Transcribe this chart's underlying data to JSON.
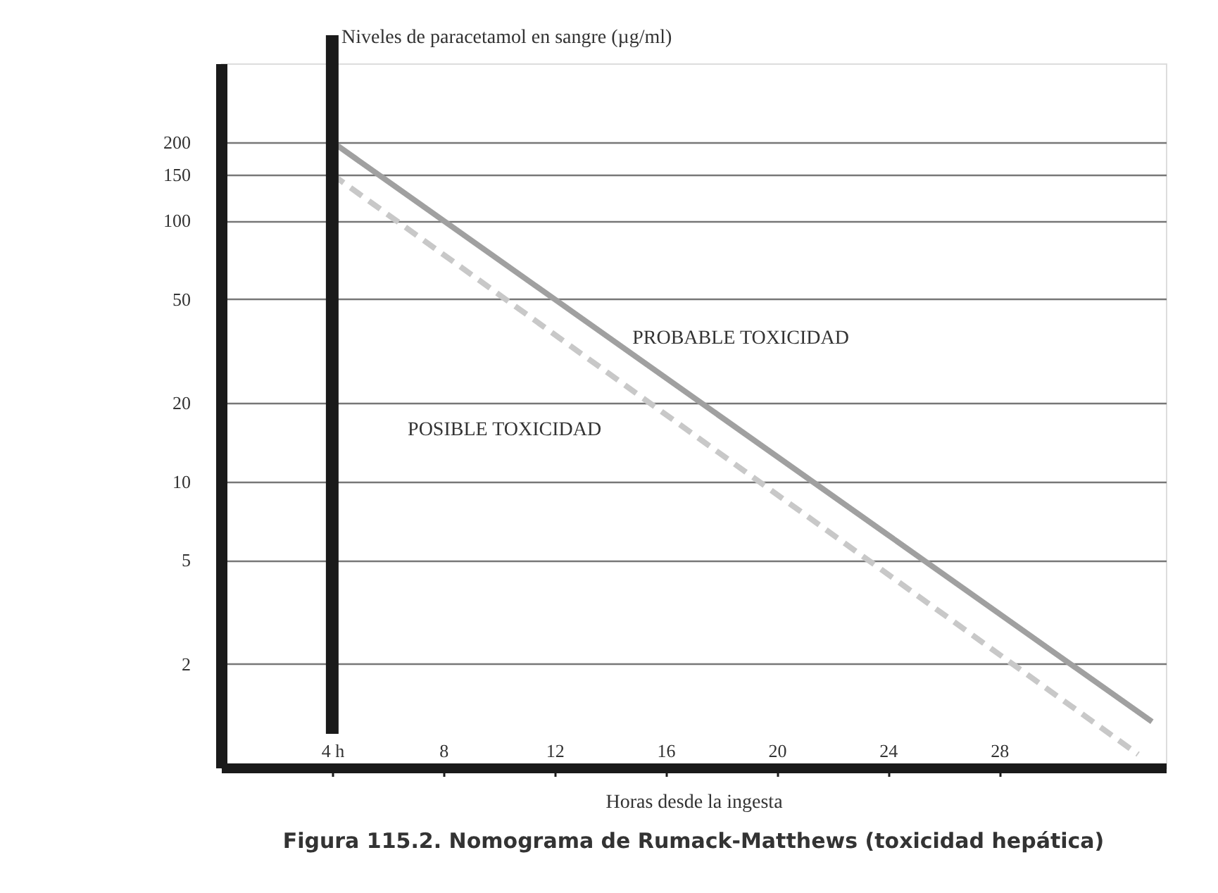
{
  "chart_data": {
    "type": "line",
    "title": "Figura 115.2. Nomograma de Rumack-Matthews (toxicidad hepática)",
    "xlabel": "Horas desde la ingesta",
    "ylabel": "Niveles de paracetamol en sangre (µg/ml)",
    "log": "y",
    "grid": "y",
    "marker": "none",
    "xlim": [
      0,
      34
    ],
    "xticks": [
      {
        "value": 4,
        "label": "4 h"
      },
      8,
      12,
      16,
      20,
      24,
      28
    ],
    "ylim": [
      0.8,
      400
    ],
    "yticks": [
      200,
      150,
      100,
      50,
      20,
      10,
      5,
      2
    ],
    "ref_lines": [
      {
        "axis": "x",
        "value": 4,
        "label": null,
        "color": "#1a1a1a"
      }
    ],
    "series": [
      {
        "color": "#a0a0a0",
        "line_style": "solid",
        "x": [
          4,
          33.5
        ],
        "values": [
          200,
          1.2
        ]
      },
      {
        "color": "#c8c8c8",
        "line_style": "dashed",
        "x": [
          4,
          33
        ],
        "values": [
          150,
          0.9
        ]
      }
    ],
    "annotations": [
      "PROBABLE TOXICIDAD",
      "POSIBLE TOXICIDAD"
    ]
  }
}
